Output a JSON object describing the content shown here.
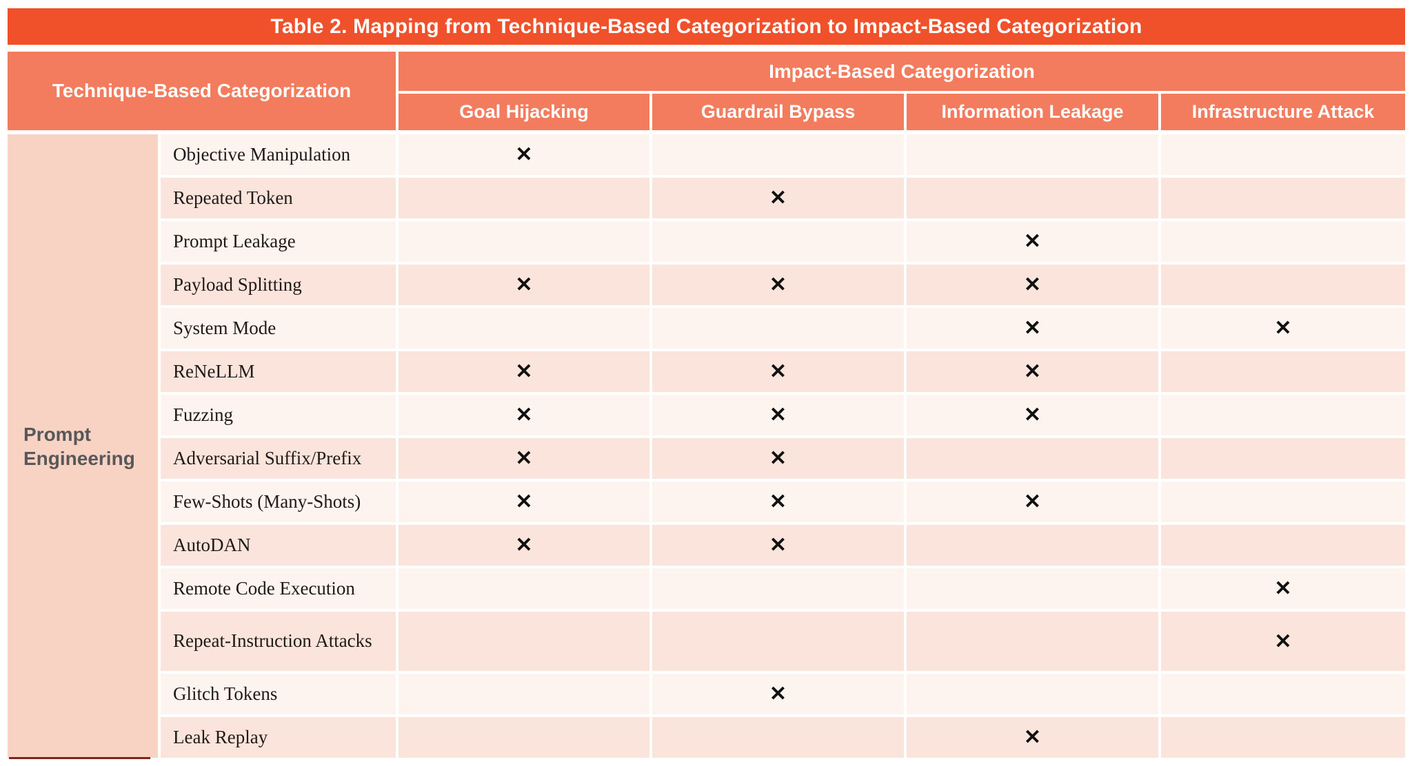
{
  "title": "Table 2. Mapping from Technique-Based Categorization to Impact-Based Categorization",
  "headers": {
    "technique_header": "Technique-Based Categorization",
    "impact_header": "Impact-Based Categorization",
    "impact_columns": [
      "Goal Hijacking",
      "Guardrail Bypass",
      "Information Leakage",
      "Infrastructure Attack"
    ]
  },
  "row_group_label": "Prompt Engineering",
  "mark_glyph": "✕",
  "rows": [
    {
      "technique": "Objective Manipulation",
      "marks": [
        1,
        0,
        0,
        0
      ]
    },
    {
      "technique": "Repeated Token",
      "marks": [
        0,
        1,
        0,
        0
      ]
    },
    {
      "technique": "Prompt Leakage",
      "marks": [
        0,
        0,
        1,
        0
      ]
    },
    {
      "technique": "Payload Splitting",
      "marks": [
        1,
        1,
        1,
        0
      ]
    },
    {
      "technique": "System Mode",
      "marks": [
        0,
        0,
        1,
        1
      ]
    },
    {
      "technique": "ReNeLLM",
      "marks": [
        1,
        1,
        1,
        0
      ]
    },
    {
      "technique": "Fuzzing",
      "marks": [
        1,
        1,
        1,
        0
      ]
    },
    {
      "technique": "Adversarial Suffix/Prefix",
      "marks": [
        1,
        1,
        0,
        0
      ]
    },
    {
      "technique": "Few-Shots (Many-Shots)",
      "marks": [
        1,
        1,
        1,
        0
      ]
    },
    {
      "technique": "AutoDAN",
      "marks": [
        1,
        1,
        0,
        0
      ]
    },
    {
      "technique": "Remote Code Execution",
      "marks": [
        0,
        0,
        0,
        1
      ]
    },
    {
      "technique": "Repeat-Instruction Attacks",
      "marks": [
        0,
        0,
        0,
        1
      ],
      "tall": true
    },
    {
      "technique": "Glitch Tokens",
      "marks": [
        0,
        1,
        0,
        0
      ]
    },
    {
      "technique": "Leak Replay",
      "marks": [
        0,
        0,
        1,
        0
      ]
    }
  ],
  "chart_data": {
    "type": "table",
    "title": "Table 2. Mapping from Technique-Based Categorization to Impact-Based Categorization",
    "row_group": "Prompt Engineering",
    "columns": [
      "Goal Hijacking",
      "Guardrail Bypass",
      "Information Leakage",
      "Infrastructure Attack"
    ],
    "matrix": {
      "Objective Manipulation": [
        "Goal Hijacking"
      ],
      "Repeated Token": [
        "Guardrail Bypass"
      ],
      "Prompt Leakage": [
        "Information Leakage"
      ],
      "Payload Splitting": [
        "Goal Hijacking",
        "Guardrail Bypass",
        "Information Leakage"
      ],
      "System Mode": [
        "Information Leakage",
        "Infrastructure Attack"
      ],
      "ReNeLLM": [
        "Goal Hijacking",
        "Guardrail Bypass",
        "Information Leakage"
      ],
      "Fuzzing": [
        "Goal Hijacking",
        "Guardrail Bypass",
        "Information Leakage"
      ],
      "Adversarial Suffix/Prefix": [
        "Goal Hijacking",
        "Guardrail Bypass"
      ],
      "Few-Shots (Many-Shots)": [
        "Goal Hijacking",
        "Guardrail Bypass",
        "Information Leakage"
      ],
      "AutoDAN": [
        "Goal Hijacking",
        "Guardrail Bypass"
      ],
      "Remote Code Execution": [
        "Infrastructure Attack"
      ],
      "Repeat-Instruction Attacks": [
        "Infrastructure Attack"
      ],
      "Glitch Tokens": [
        "Guardrail Bypass"
      ],
      "Leak Replay": [
        "Information Leakage"
      ]
    }
  },
  "colors": {
    "title_bar_bg": "#F0502A",
    "header_bg": "#F47C5E",
    "group_bg": "#F8D2C2",
    "row_light_bg": "#FDF3EF",
    "row_dark_bg": "#FBE4DB",
    "header_text": "#FFFFFF",
    "group_text": "#58585A",
    "row_text": "#1F1A17",
    "mark_color": "#111111",
    "artifact_line": "#7B241A"
  }
}
